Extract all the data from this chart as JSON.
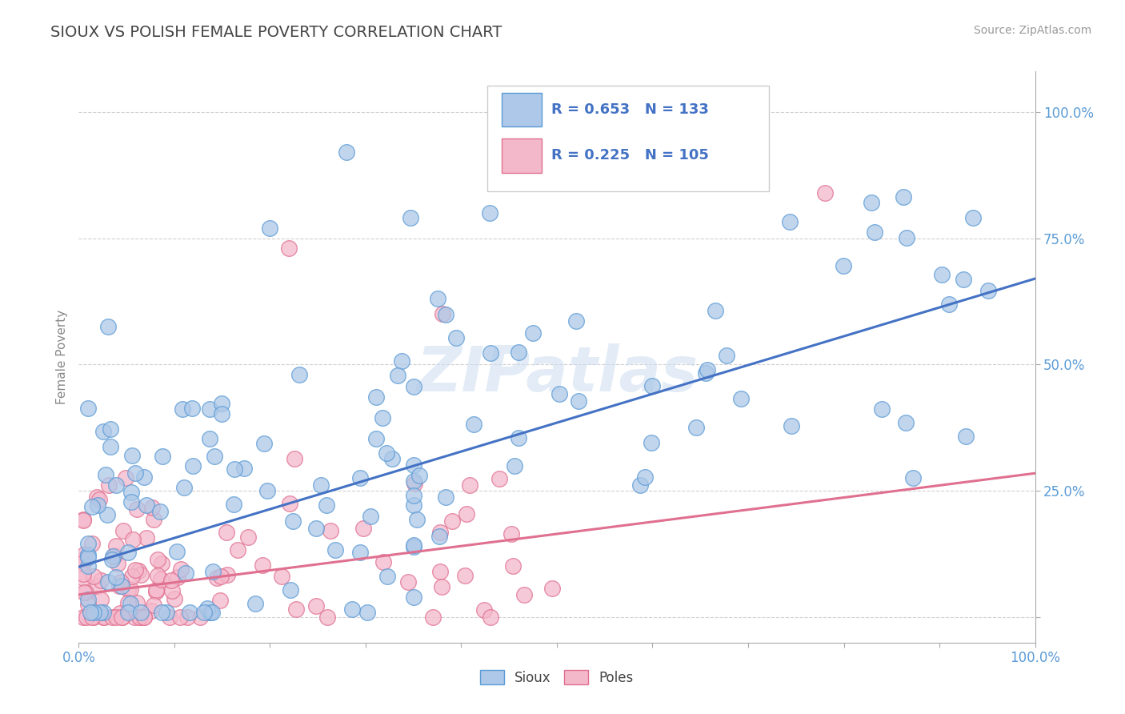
{
  "title": "SIOUX VS POLISH FEMALE POVERTY CORRELATION CHART",
  "source_text": "Source: ZipAtlas.com",
  "ylabel": "Female Poverty",
  "xlim": [
    0.0,
    1.0
  ],
  "ylim": [
    -0.05,
    1.08
  ],
  "sioux_R": 0.653,
  "sioux_N": 133,
  "poles_R": 0.225,
  "poles_N": 105,
  "sioux_color": "#adc8e8",
  "sioux_edge_color": "#5b9bd5",
  "sioux_line_color": "#4472c4",
  "poles_color": "#f4b8cb",
  "poles_edge_color": "#e07090",
  "poles_line_color": "#e07090",
  "legend_label_sioux": "Sioux",
  "legend_label_poles": "Poles",
  "watermark": "ZIPatlas",
  "background_color": "#ffffff",
  "grid_color": "#d0d0d0",
  "title_color": "#555555",
  "axis_label_color": "#5b9bd5",
  "tick_label_color": "#5b9bd5",
  "legend_text_color": "#4472c4",
  "sioux_line_start_y": 0.1,
  "sioux_line_end_y": 0.67,
  "poles_line_start_y": 0.045,
  "poles_line_end_y": 0.285
}
